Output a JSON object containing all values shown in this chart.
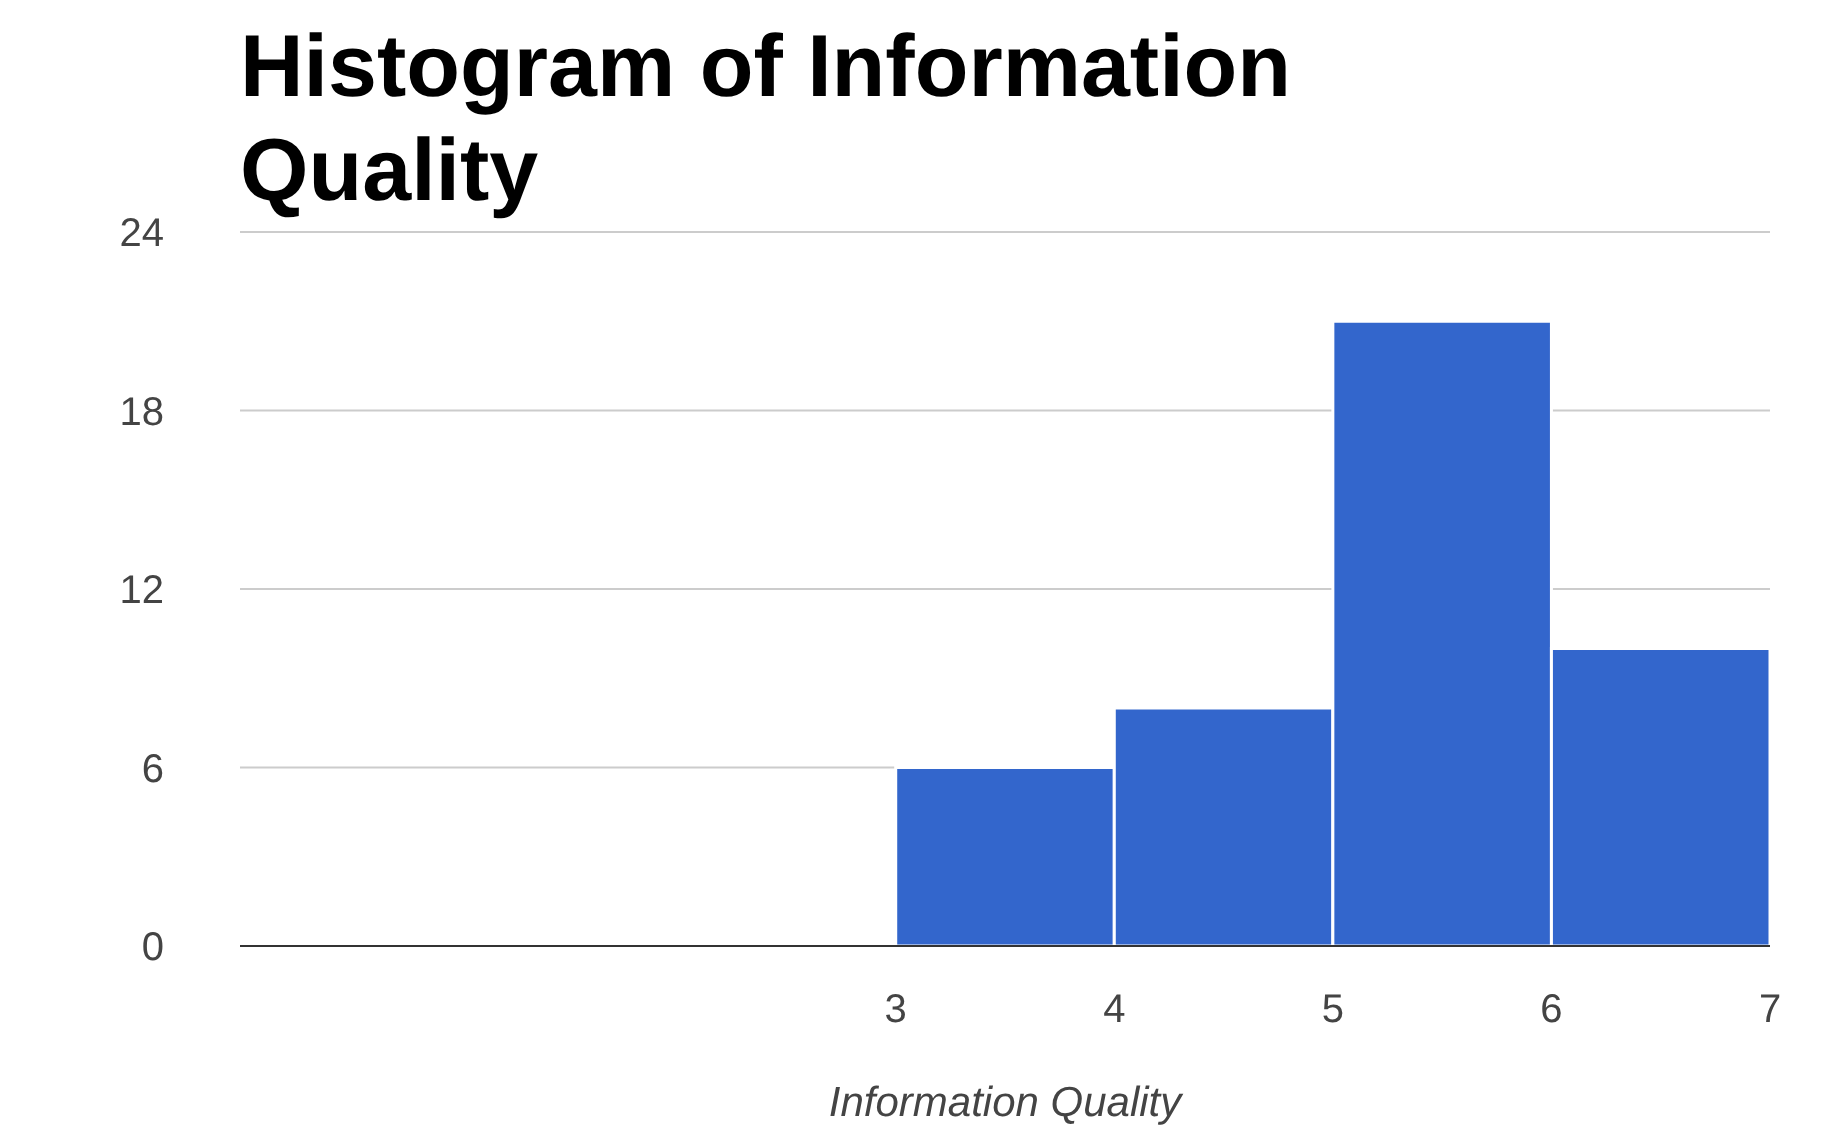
{
  "chart_data": {
    "type": "histogram",
    "title": "Histogram of Information Quality",
    "xlabel": "Information Quality",
    "bins": [
      3,
      4,
      5,
      6,
      7
    ],
    "values": [
      6,
      8,
      21,
      10
    ],
    "color": "#3366cc",
    "xlim": [
      0,
      7
    ],
    "xticks": [
      3,
      4,
      5,
      6,
      7
    ],
    "ylim": [
      0,
      24
    ],
    "yticks": [
      0,
      6,
      12,
      18,
      24
    ],
    "grid": "y"
  }
}
